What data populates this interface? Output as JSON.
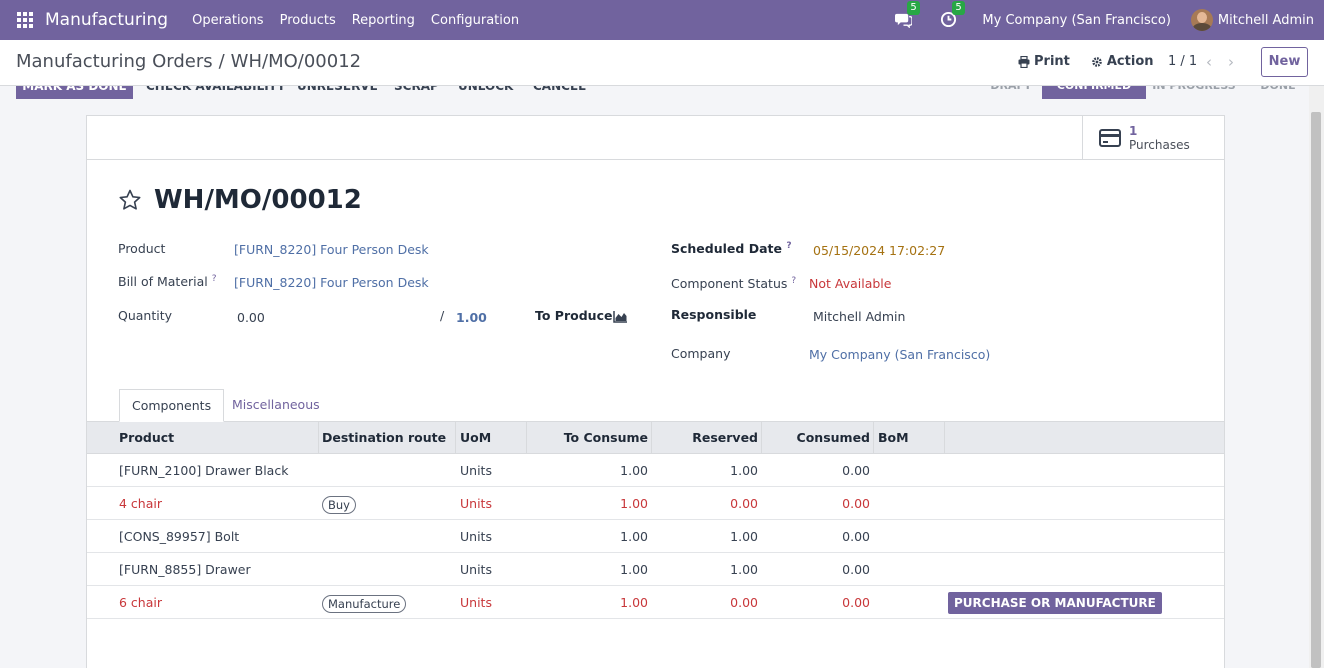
{
  "navbar": {
    "brand": "Manufacturing",
    "menu": [
      "Operations",
      "Products",
      "Reporting",
      "Configuration"
    ],
    "messages_count": "5",
    "activities_count": "5",
    "company": "My Company (San Francisco)",
    "user": "Mitchell Admin"
  },
  "control": {
    "breadcrumb_parent": "Manufacturing Orders",
    "breadcrumb_separator": "/",
    "breadcrumb_current": "WH/MO/00012",
    "print_label": "Print",
    "action_label": "Action",
    "pager": "1 / 1",
    "new_label": "New"
  },
  "statusbar": {
    "buttons": [
      "MARK AS DONE",
      "CHECK AVAILABILITY",
      "UNRESERVE",
      "SCRAP",
      "UNLOCK",
      "CANCEL"
    ],
    "stages": [
      "DRAFT",
      "CONFIRMED",
      "IN PROGRESS",
      "DONE"
    ],
    "active_stage": "CONFIRMED"
  },
  "smart_button": {
    "value": "1",
    "label": "Purchases"
  },
  "form": {
    "title": "WH/MO/00012",
    "product_label": "Product",
    "product_value": "[FURN_8220] Four Person Desk",
    "bom_label": "Bill of Material",
    "bom_value": "[FURN_8220] Four Person Desk",
    "quantity_label": "Quantity",
    "quantity_produced": "0.00",
    "quantity_separator": "/",
    "quantity_total": "1.00",
    "to_produce_label": "To Produce",
    "scheduled_date_label": "Scheduled Date",
    "scheduled_date_value": "05/15/2024 17:02:27",
    "component_status_label": "Component Status",
    "component_status_value": "Not Available",
    "responsible_label": "Responsible",
    "responsible_value": "Mitchell Admin",
    "company_label": "Company",
    "company_value": "My Company (San Francisco)",
    "help_mark": "?"
  },
  "tabs": [
    "Components",
    "Miscellaneous"
  ],
  "table": {
    "headers": [
      "Product",
      "Destination route",
      "UoM",
      "To Consume",
      "Reserved",
      "Consumed",
      "BoM"
    ],
    "rows": [
      {
        "product": "[FURN_2100] Drawer Black",
        "route": "",
        "uom": "Units",
        "to_consume": "1.00",
        "reserved": "1.00",
        "consumed": "0.00",
        "late": false
      },
      {
        "product": "4 chair",
        "route": "Buy",
        "uom": "Units",
        "to_consume": "1.00",
        "reserved": "0.00",
        "consumed": "0.00",
        "late": true
      },
      {
        "product": "[CONS_89957] Bolt",
        "route": "",
        "uom": "Units",
        "to_consume": "1.00",
        "reserved": "1.00",
        "consumed": "0.00",
        "late": false
      },
      {
        "product": "[FURN_8855] Drawer",
        "route": "",
        "uom": "Units",
        "to_consume": "1.00",
        "reserved": "1.00",
        "consumed": "0.00",
        "late": false
      },
      {
        "product": "6 chair",
        "route": "Manufacture",
        "uom": "Units",
        "to_consume": "1.00",
        "reserved": "0.00",
        "consumed": "0.00",
        "late": true,
        "action": "PURCHASE OR MANUFACTURE"
      }
    ]
  },
  "colors": {
    "brand": "#71639e",
    "danger": "#c8373a",
    "warning": "#a57212",
    "link": "#4f6fa6",
    "badge": "#28a745"
  }
}
